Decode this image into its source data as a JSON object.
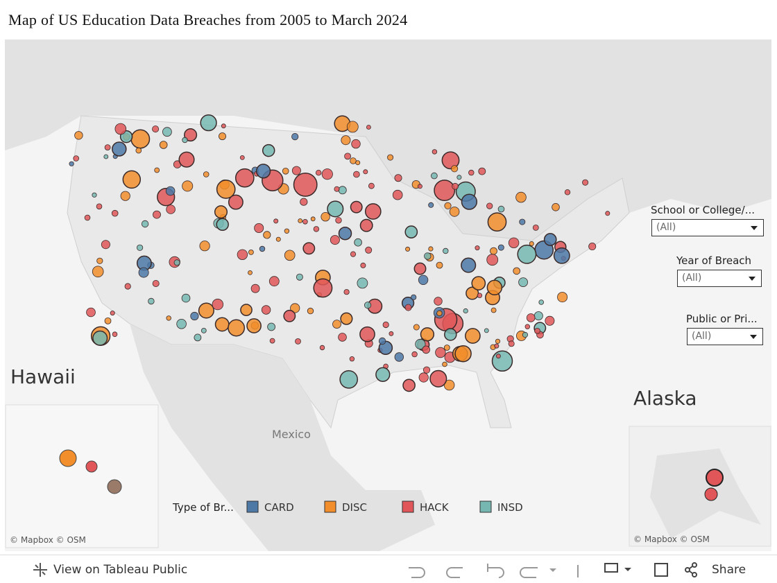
{
  "title": "Map of US Education Data Breaches from 2005 to March 2024",
  "map": {
    "hawaii": "Hawaii",
    "alaska": "Alaska",
    "mexico": "Mexico",
    "attribution": "© Mapbox  © OSM"
  },
  "filters": [
    {
      "label": "School or College/...",
      "value": "(All)"
    },
    {
      "label": "Year of Breach",
      "value": "(All)"
    },
    {
      "label": "Public or Pri...",
      "value": "(All)"
    }
  ],
  "legend": {
    "title": "Type of Br...",
    "items": [
      {
        "name": "CARD",
        "color": "#4e79a7"
      },
      {
        "name": "DISC",
        "color": "#f28e2b"
      },
      {
        "name": "HACK",
        "color": "#e15759"
      },
      {
        "name": "INSD",
        "color": "#76b7b2"
      }
    ]
  },
  "toolbar": {
    "view": "View on Tableau Public",
    "share": "Share"
  }
}
